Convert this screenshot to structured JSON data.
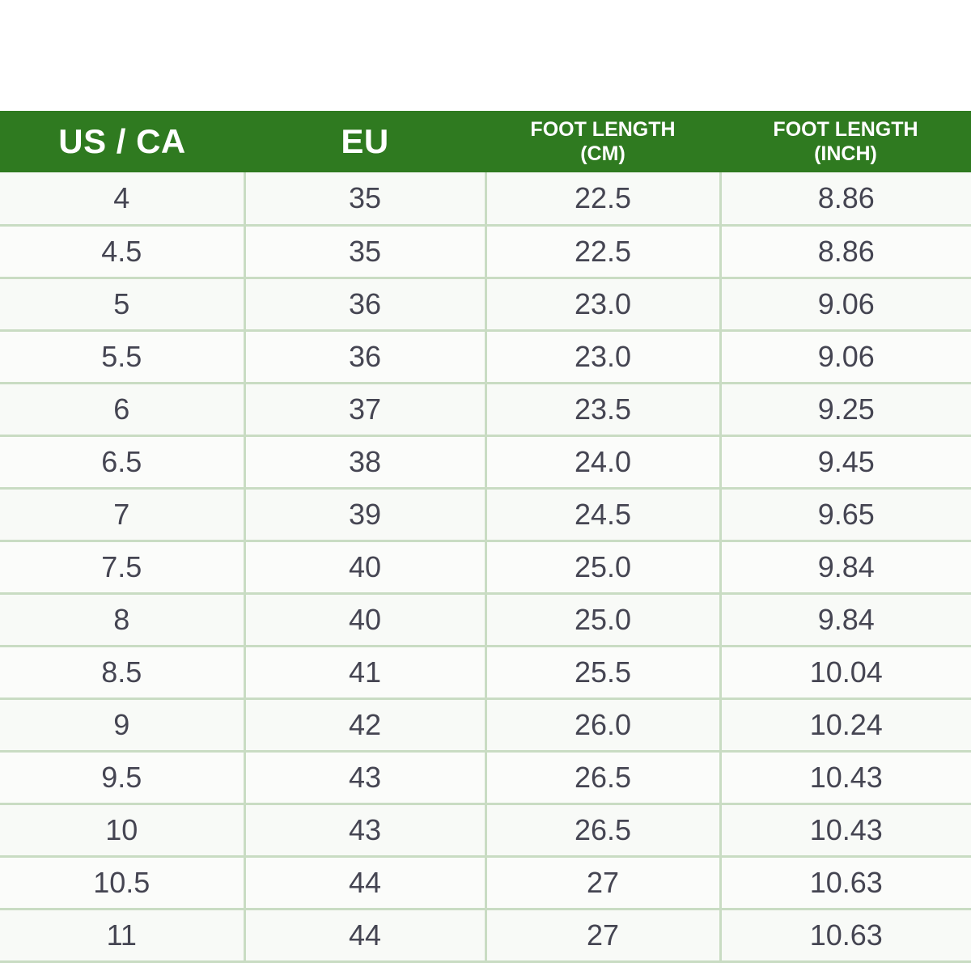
{
  "table": {
    "headers": {
      "us_ca": "US / CA",
      "eu": "EU",
      "cm_line1": "FOOT LENGTH",
      "cm_line2": "(CM)",
      "inch_line1": "FOOT LENGTH",
      "inch_line2": "(INCH)"
    },
    "colors": {
      "header_bg": "#2f7a20",
      "header_text": "#ffffff",
      "grid_line": "#c9dcc3",
      "cell_text": "#454552"
    },
    "rows": [
      {
        "us": "4",
        "eu": "35",
        "cm": "22.5",
        "inch": "8.86"
      },
      {
        "us": "4.5",
        "eu": "35",
        "cm": "22.5",
        "inch": "8.86"
      },
      {
        "us": "5",
        "eu": "36",
        "cm": "23.0",
        "inch": "9.06"
      },
      {
        "us": "5.5",
        "eu": "36",
        "cm": "23.0",
        "inch": "9.06"
      },
      {
        "us": "6",
        "eu": "37",
        "cm": "23.5",
        "inch": "9.25"
      },
      {
        "us": "6.5",
        "eu": "38",
        "cm": "24.0",
        "inch": "9.45"
      },
      {
        "us": "7",
        "eu": "39",
        "cm": "24.5",
        "inch": "9.65"
      },
      {
        "us": "7.5",
        "eu": "40",
        "cm": "25.0",
        "inch": "9.84"
      },
      {
        "us": "8",
        "eu": "40",
        "cm": "25.0",
        "inch": "9.84"
      },
      {
        "us": "8.5",
        "eu": "41",
        "cm": "25.5",
        "inch": "10.04"
      },
      {
        "us": "9",
        "eu": "42",
        "cm": "26.0",
        "inch": "10.24"
      },
      {
        "us": "9.5",
        "eu": "43",
        "cm": "26.5",
        "inch": "10.43"
      },
      {
        "us": "10",
        "eu": "43",
        "cm": "26.5",
        "inch": "10.43"
      },
      {
        "us": "10.5",
        "eu": "44",
        "cm": "27",
        "inch": "10.63"
      },
      {
        "us": "11",
        "eu": "44",
        "cm": "27",
        "inch": "10.63"
      }
    ]
  }
}
